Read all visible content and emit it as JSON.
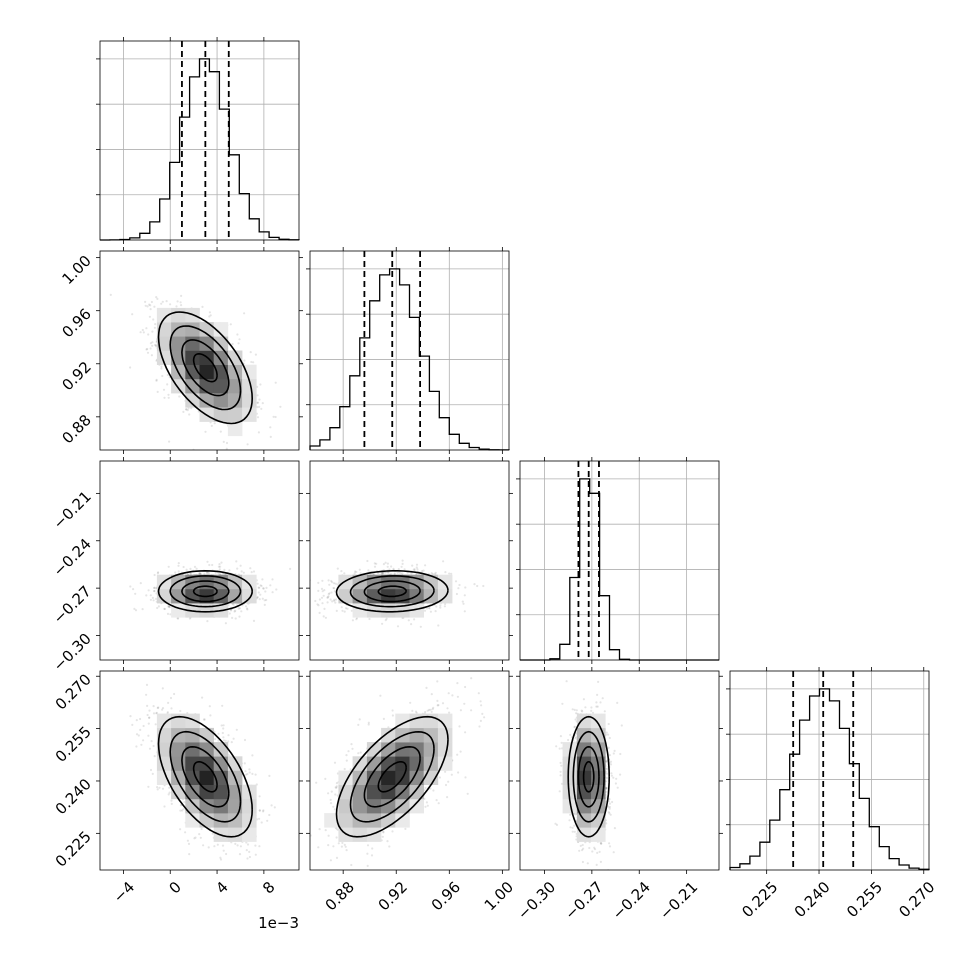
{
  "chart_data": {
    "type": "corner",
    "title": "",
    "parameters": [
      {
        "index": 0,
        "range": [
          -6.0,
          11.0
        ],
        "scale_offset_label": "1e−3",
        "ticks": [
          {
            "value": -4,
            "label": "−4"
          },
          {
            "value": 0,
            "label": "0"
          },
          {
            "value": 4,
            "label": "4"
          },
          {
            "value": 8,
            "label": "8"
          }
        ],
        "quantiles": [
          1.0,
          3.0,
          5.0
        ],
        "mean": 3.0,
        "sd": 2.0
      },
      {
        "index": 1,
        "range": [
          0.855,
          1.005
        ],
        "ticks": [
          {
            "value": 0.88,
            "label": "0.88"
          },
          {
            "value": 0.92,
            "label": "0.92"
          },
          {
            "value": 0.96,
            "label": "0.96"
          },
          {
            "value": 1.0,
            "label": "1.00"
          }
        ],
        "quantiles": [
          0.896,
          0.917,
          0.938
        ],
        "mean": 0.917,
        "sd": 0.021
      },
      {
        "index": 2,
        "range": [
          -0.3155,
          -0.1895
        ],
        "ticks": [
          {
            "value": -0.3,
            "label": "−0.30"
          },
          {
            "value": -0.27,
            "label": "−0.27"
          },
          {
            "value": -0.24,
            "label": "−0.24"
          },
          {
            "value": -0.21,
            "label": "−0.21"
          }
        ],
        "quantiles": [
          -0.2785,
          -0.272,
          -0.2655
        ],
        "mean": -0.272,
        "sd": 0.0065
      },
      {
        "index": 3,
        "range": [
          0.2145,
          0.2715
        ],
        "ticks": [
          {
            "value": 0.225,
            "label": "0.225"
          },
          {
            "value": 0.24,
            "label": "0.240"
          },
          {
            "value": 0.255,
            "label": "0.255"
          },
          {
            "value": 0.27,
            "label": "0.270"
          }
        ],
        "quantiles": [
          0.2326,
          0.2412,
          0.2498
        ],
        "mean": 0.2412,
        "sd": 0.0086
      }
    ],
    "correlations": [
      {
        "pair": [
          1,
          0
        ],
        "rho": -0.55
      },
      {
        "pair": [
          2,
          0
        ],
        "rho": 0.0
      },
      {
        "pair": [
          2,
          1
        ],
        "rho": 0.05
      },
      {
        "pair": [
          3,
          0
        ],
        "rho": -0.55
      },
      {
        "pair": [
          3,
          1
        ],
        "rho": 0.62
      },
      {
        "pair": [
          3,
          2
        ],
        "rho": 0.0
      }
    ],
    "histogram_bins": 20,
    "contour_levels_sigma": [
      0.5,
      1.0,
      1.5,
      2.0
    ],
    "grid": true,
    "legend": "none",
    "colors": {
      "samples": "#000000",
      "contours": "#000000",
      "grid": "#b0b0b0",
      "background": "#ffffff"
    }
  }
}
